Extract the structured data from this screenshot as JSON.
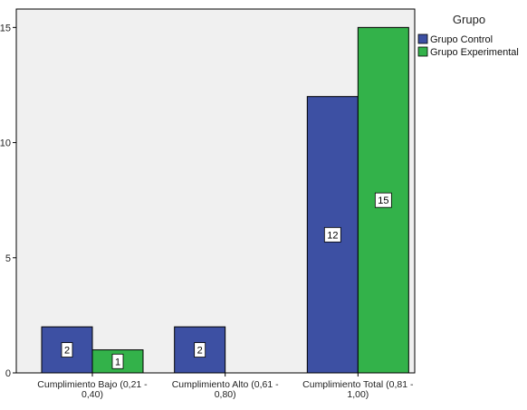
{
  "chart_data": {
    "type": "bar",
    "title": "",
    "xlabel": "",
    "ylabel": "",
    "categories": [
      [
        "Cumplimiento Bajo (0,21 -",
        "0,40)"
      ],
      [
        "Cumplimiento Alto (0,61 -",
        "0,80)"
      ],
      [
        "Cumplimiento Total (0,81 -",
        "1,00)"
      ]
    ],
    "series": [
      {
        "name": "Grupo Control",
        "values": [
          2,
          2,
          12
        ],
        "labels": [
          "2",
          "2",
          "12"
        ]
      },
      {
        "name": "Grupo Experimental",
        "values": [
          1,
          0,
          15
        ],
        "labels": [
          "1",
          "",
          "15"
        ]
      }
    ],
    "ylim": [
      0,
      15.8
    ],
    "yticks": [
      0,
      5,
      10,
      15
    ],
    "ytick_labels": [
      "0",
      "5",
      "10",
      "15"
    ],
    "grid": false,
    "legend": {
      "title": "Grupo",
      "position": "top-right"
    },
    "colors": {
      "plot_bg": "#F0F0F0",
      "Grupo Control": "#3D50A3",
      "Grupo Experimental": "#33B24A",
      "outline": "#000000"
    }
  }
}
